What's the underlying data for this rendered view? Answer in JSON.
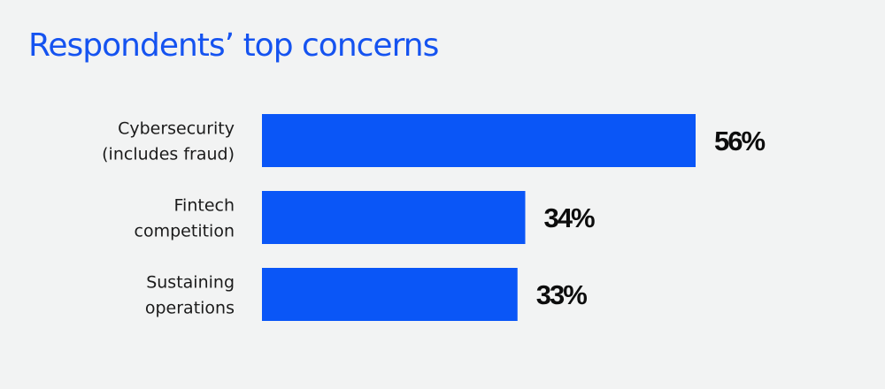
{
  "title": "Respondents’ top concerns",
  "colors": {
    "background": "#f2f3f3",
    "title": "#1553f0",
    "bar": "#0a56f7",
    "category_text": "#1b1b1b",
    "value_text": "#0d0d0d"
  },
  "chart_data": {
    "type": "bar",
    "orientation": "horizontal",
    "title": "Respondents’ top concerns",
    "categories": [
      [
        "Cybersecurity",
        "(includes fraud)"
      ],
      [
        "Fintech",
        "competition"
      ],
      [
        "Sustaining",
        "operations"
      ]
    ],
    "values": [
      56,
      34,
      33
    ],
    "value_labels": [
      "56%",
      "34%",
      "33%"
    ],
    "xlabel": "",
    "ylabel": "",
    "xlim": [
      0,
      100
    ],
    "grid": false,
    "legend": "none"
  }
}
